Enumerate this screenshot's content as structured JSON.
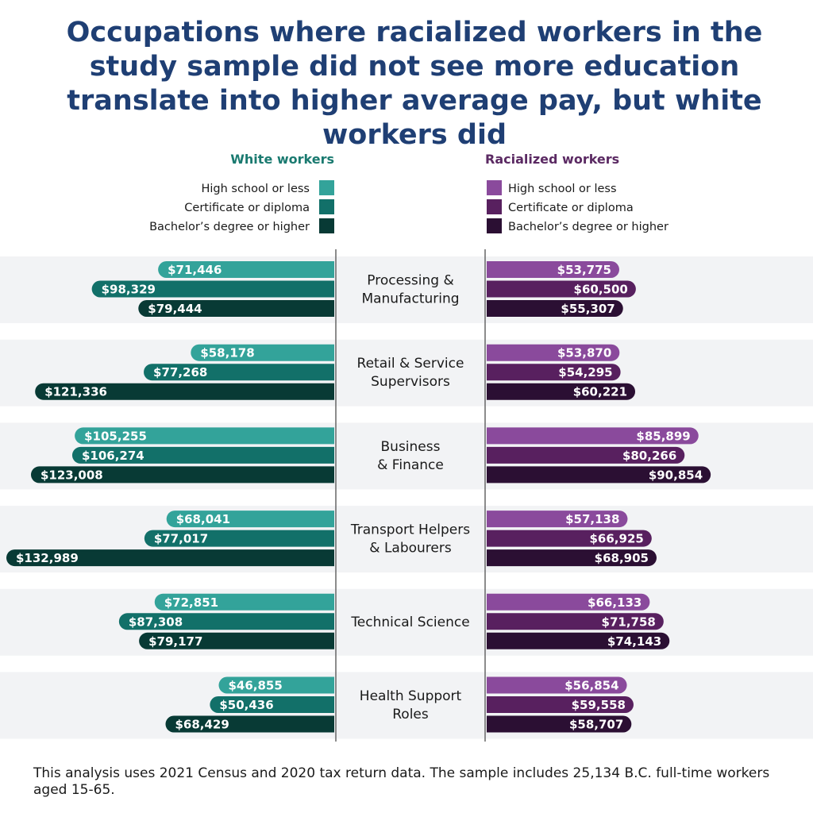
{
  "title": "Occupations where racialized workers in the study sample did not see more education translate into higher average pay, but white workers did",
  "footnote": "This analysis uses 2021 Census and 2020 tax return data. The sample includes 25,134 B.C. full-time workers aged 15-65.",
  "colors": {
    "white_levels": [
      "#33a39a",
      "#127069",
      "#083a35"
    ],
    "racialized_levels": [
      "#8a4a9c",
      "#58205f",
      "#2b0f33"
    ],
    "white_title": "#1a7a70",
    "racialized_title": "#5b2a63",
    "band": "#f2f3f5",
    "axis": "#666666"
  },
  "chart_data": {
    "type": "bar",
    "orientation": "horizontal-mirrored",
    "title": "Occupations where racialized workers in the study sample did not see more education translate into higher average pay, but white workers did",
    "categories": [
      "Processing & Manufacturing",
      "Retail & Service Supervisors",
      "Business & Finance",
      "Transport Helpers & Labourers",
      "Technical Science",
      "Health Support Roles"
    ],
    "category_lines": [
      [
        "Processing &",
        "Manufacturing"
      ],
      [
        "Retail & Service",
        "Supervisors"
      ],
      [
        "Business",
        "& Finance"
      ],
      [
        "Transport Helpers",
        "& Labourers"
      ],
      [
        "Technical Science"
      ],
      [
        "Health Support",
        "Roles"
      ]
    ],
    "education_levels": [
      "High school or less",
      "Certificate or diploma",
      "Bachelor’s degree or higher"
    ],
    "groups": [
      {
        "name": "White workers",
        "side": "left",
        "values": [
          [
            71446,
            98329,
            79444
          ],
          [
            58178,
            77268,
            121336
          ],
          [
            105255,
            106274,
            123008
          ],
          [
            68041,
            77017,
            132989
          ],
          [
            72851,
            87308,
            79177
          ],
          [
            46855,
            50436,
            68429
          ]
        ],
        "labels": [
          [
            "$71,446",
            "$98,329",
            "$79,444"
          ],
          [
            "$58,178",
            "$77,268",
            "$121,336"
          ],
          [
            "$105,255",
            "$106,274",
            "$123,008"
          ],
          [
            "$68,041",
            "$77,017",
            "$132,989"
          ],
          [
            "$72,851",
            "$87,308",
            "$79,177"
          ],
          [
            "$46,855",
            "$50,436",
            "$68,429"
          ]
        ]
      },
      {
        "name": "Racialized workers",
        "side": "right",
        "values": [
          [
            53775,
            60500,
            55307
          ],
          [
            53870,
            54295,
            60221
          ],
          [
            85899,
            80266,
            90854
          ],
          [
            57138,
            66925,
            68905
          ],
          [
            66133,
            71758,
            74143
          ],
          [
            56854,
            59558,
            58707
          ]
        ],
        "labels": [
          [
            "$53,775",
            "$60,500",
            "$55,307"
          ],
          [
            "$53,870",
            "$54,295",
            "$60,221"
          ],
          [
            "$85,899",
            "$80,266",
            "$90,854"
          ],
          [
            "$57,138",
            "$66,925",
            "$68,905"
          ],
          [
            "$66,133",
            "$71,758",
            "$74,143"
          ],
          [
            "$56,854",
            "$59,558",
            "$58,707"
          ]
        ]
      }
    ],
    "xlabel": "",
    "ylabel": "",
    "legend": "top",
    "grid": false
  }
}
